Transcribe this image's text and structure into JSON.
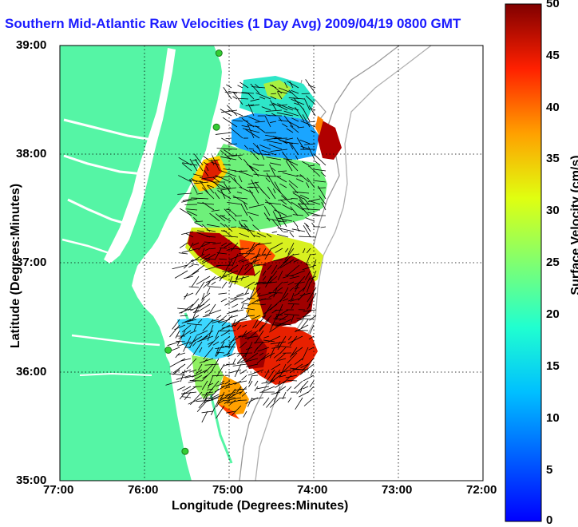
{
  "title": "Southern Mid-Atlantic Raw Velocities (1 Day Avg) 2009/04/19 0800 GMT",
  "axes": {
    "xlabel": "Longitude (Degrees:Minutes)",
    "ylabel": "Latitude (Degrees:Minutes)",
    "xticks": [
      "77:00",
      "76:00",
      "75:00",
      "74:00",
      "73:00",
      "72:00"
    ],
    "yticks": [
      "39:00",
      "38:00",
      "37:00",
      "36:00",
      "35:00"
    ]
  },
  "colorbar": {
    "label": "Surface Velocity (cm/s)",
    "ticks": [
      "50",
      "45",
      "40",
      "35",
      "30",
      "25",
      "20",
      "15",
      "10",
      "5",
      "0"
    ],
    "min": 0,
    "max": 50
  },
  "colors": {
    "land": "#55f5a5",
    "coast": "#909090",
    "grid": "#000000",
    "title": "#1a1aff",
    "station": "#33cc33"
  },
  "map": {
    "lon_range": [
      -77,
      -72
    ],
    "lat_range": [
      35,
      39
    ],
    "stations": [
      {
        "lon": -75.12,
        "lat": 38.93
      },
      {
        "lon": -75.15,
        "lat": 38.25
      },
      {
        "lon": -75.72,
        "lat": 36.2
      },
      {
        "lon": -75.52,
        "lat": 35.27
      }
    ]
  }
}
